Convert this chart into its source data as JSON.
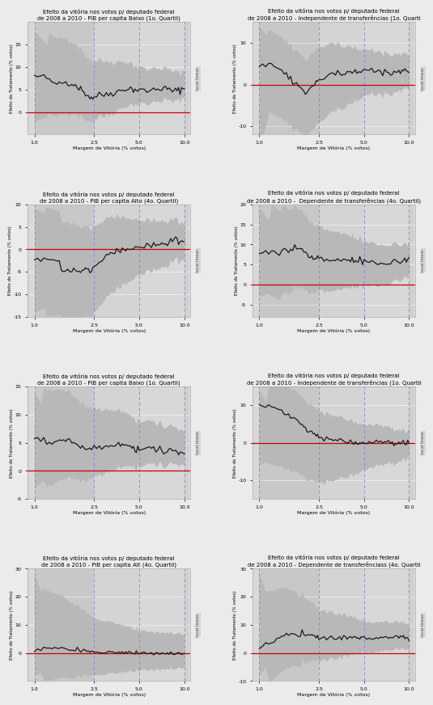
{
  "panels": [
    {
      "title": "Efeito da vitória nos votos p/ deputado federal\nde 2008 a 2010 - PIB per capita Baixo (1o. Quartil)",
      "ylim": [
        -5,
        20
      ],
      "yticks": [
        0,
        5,
        10,
        15
      ],
      "side_label": "local linear"
    },
    {
      "title": "Efeito da vitória nos votos p/ deputado federal\nde 2008 a 2010 - Independente de transferências (1o. Quarti",
      "ylim": [
        -12,
        15
      ],
      "yticks": [
        -10,
        0,
        10
      ],
      "side_label": "local linear"
    },
    {
      "title": "Efeito da vitória nos votos p/ deputado federal\nde 2008 a 2010 - PIB per capita Alto (4o. Quartil)",
      "ylim": [
        -15,
        10
      ],
      "yticks": [
        -15,
        -10,
        -5,
        0,
        5,
        10
      ],
      "side_label": "local linear"
    },
    {
      "title": "Efeito da vitória nos votos p/ deputado federal\nde 2008 a 2010 -  Dependente de transferências (4o. Quartil)",
      "ylim": [
        -8,
        20
      ],
      "yticks": [
        -5,
        0,
        5,
        10,
        15,
        20
      ],
      "side_label": "local linear"
    },
    {
      "title": "Efeito da vitória nos votos p/ deputado federal\nde 2008 a 2010 - PIB per capita Baixo (1o. Quartil)",
      "ylim": [
        -5,
        15
      ],
      "yticks": [
        -5,
        0,
        5,
        10,
        15
      ],
      "side_label": "local linear"
    },
    {
      "title": "Efeito da vitória nos votos p/ deputado federal\nde 2008 a 2010 - Independente de transferências (1o. Quartil",
      "ylim": [
        -15,
        15
      ],
      "yticks": [
        -10,
        0,
        10
      ],
      "side_label": "local linear"
    },
    {
      "title": "Efeito da vitória nos votos p/ deputado federal\nde 2008 a 2010 - PIB per capita Alt (4o. Quartil)",
      "ylim": [
        -10,
        30
      ],
      "yticks": [
        0,
        10,
        20,
        30
      ],
      "side_label": "local linear"
    },
    {
      "title": "Efeito da vitória nos votos p/ deputado federal\nde 2008 a 2010 - Dependente de transferênciass (4o. Quartil",
      "ylim": [
        -10,
        30
      ],
      "yticks": [
        -10,
        0,
        10,
        20,
        30
      ],
      "side_label": "local linear"
    }
  ],
  "vlines": [
    1.0,
    2.5,
    5.0,
    10.0
  ],
  "bg_color": "#ebebeb",
  "plot_bg_light": "#e0e0e0",
  "plot_bg_dark": "#c8c8c8",
  "line_color": "#1a1a1a",
  "zero_line_color": "#cc0000",
  "xlabel": "Margem de Vitória (% votos)",
  "ylabel": "Efeito do Tratamento (% votos)"
}
